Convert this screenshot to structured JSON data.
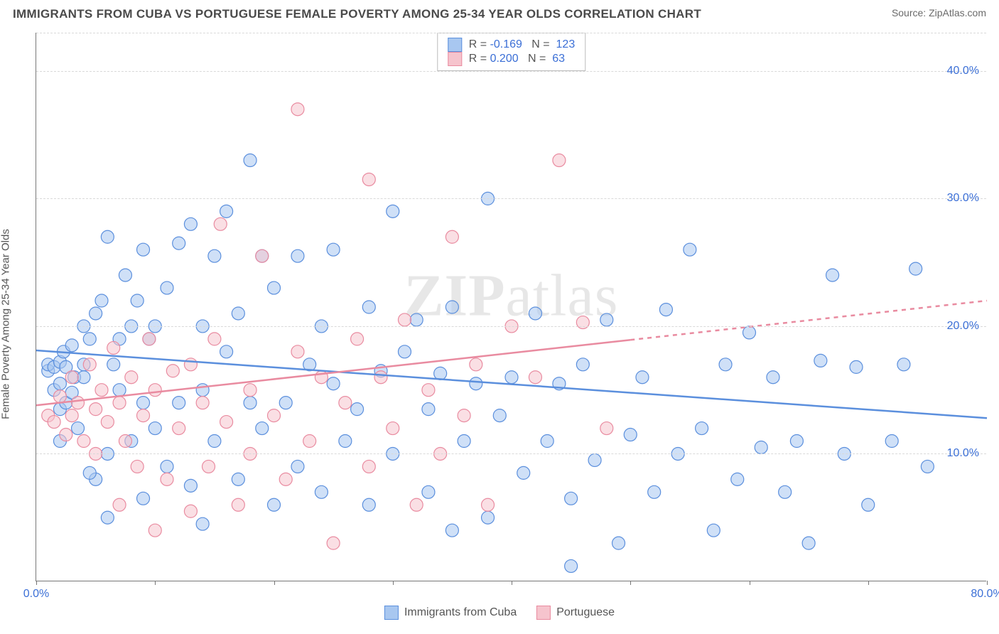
{
  "title": "IMMIGRANTS FROM CUBA VS PORTUGUESE FEMALE POVERTY AMONG 25-34 YEAR OLDS CORRELATION CHART",
  "source_label": "Source:",
  "source_name": "ZipAtlas.com",
  "ylabel": "Female Poverty Among 25-34 Year Olds",
  "watermark": {
    "a": "ZIP",
    "b": "atlas"
  },
  "chart": {
    "type": "scatter",
    "xlim": [
      0,
      80
    ],
    "ylim": [
      0,
      43
    ],
    "xtick_step": 10,
    "ytick_step": 10,
    "x_visible_labels": [
      0,
      80
    ],
    "y_visible_labels": [
      10,
      20,
      30,
      40
    ],
    "x_suffix": "%",
    "y_suffix": "%",
    "grid_color": "#d9d9d9",
    "axis_color": "#777777",
    "background_color": "#ffffff",
    "tick_label_color": "#3b6fd6",
    "marker_radius": 9,
    "marker_opacity": 0.55,
    "line_width": 2.5,
    "series": [
      {
        "id": "cuba",
        "label": "Immigrants from Cuba",
        "fill": "#a8c7f0",
        "stroke": "#5b8fdd",
        "R": "-0.169",
        "N": "123",
        "trend": {
          "x1": 0,
          "y1": 18.1,
          "x2": 80,
          "y2": 12.8,
          "dashed_from_x": null
        },
        "points": [
          [
            1,
            16.5
          ],
          [
            1,
            17
          ],
          [
            1.5,
            15
          ],
          [
            1.5,
            16.8
          ],
          [
            2,
            17.2
          ],
          [
            2,
            15.5
          ],
          [
            2,
            13.5
          ],
          [
            2.3,
            18
          ],
          [
            2.5,
            16.8
          ],
          [
            2.5,
            14
          ],
          [
            3,
            18.5
          ],
          [
            3,
            14.8
          ],
          [
            3.2,
            16
          ],
          [
            3.5,
            12
          ],
          [
            4,
            17
          ],
          [
            4,
            16
          ],
          [
            4,
            20
          ],
          [
            4.5,
            19
          ],
          [
            5,
            21
          ],
          [
            5,
            8
          ],
          [
            5.5,
            22
          ],
          [
            6,
            27
          ],
          [
            6,
            10
          ],
          [
            6.5,
            17
          ],
          [
            7,
            15
          ],
          [
            7,
            19
          ],
          [
            7.5,
            24
          ],
          [
            8,
            20
          ],
          [
            8,
            11
          ],
          [
            8.5,
            22
          ],
          [
            9,
            26
          ],
          [
            9,
            14
          ],
          [
            9.5,
            19
          ],
          [
            10,
            20
          ],
          [
            10,
            12
          ],
          [
            11,
            23
          ],
          [
            11,
            9
          ],
          [
            12,
            26.5
          ],
          [
            12,
            14
          ],
          [
            13,
            28
          ],
          [
            13,
            7.5
          ],
          [
            14,
            15
          ],
          [
            14,
            20
          ],
          [
            15,
            25.5
          ],
          [
            15,
            11
          ],
          [
            16,
            29
          ],
          [
            16,
            18
          ],
          [
            17,
            21
          ],
          [
            17,
            8
          ],
          [
            18,
            33
          ],
          [
            18,
            14
          ],
          [
            19,
            25.5
          ],
          [
            19,
            12
          ],
          [
            20,
            23
          ],
          [
            20,
            6
          ],
          [
            21,
            14
          ],
          [
            22,
            25.5
          ],
          [
            22,
            9
          ],
          [
            23,
            17
          ],
          [
            24,
            20
          ],
          [
            24,
            7
          ],
          [
            25,
            26
          ],
          [
            25,
            15.5
          ],
          [
            26,
            11
          ],
          [
            27,
            13.5
          ],
          [
            28,
            21.5
          ],
          [
            28,
            6
          ],
          [
            29,
            16.5
          ],
          [
            30,
            29
          ],
          [
            30,
            10
          ],
          [
            31,
            18
          ],
          [
            32,
            20.5
          ],
          [
            33,
            13.5
          ],
          [
            33,
            7
          ],
          [
            34,
            16.3
          ],
          [
            35,
            21.5
          ],
          [
            36,
            11
          ],
          [
            37,
            15.5
          ],
          [
            38,
            30
          ],
          [
            38,
            5
          ],
          [
            39,
            13
          ],
          [
            40,
            16
          ],
          [
            41,
            8.5
          ],
          [
            42,
            21
          ],
          [
            43,
            11
          ],
          [
            44,
            15.5
          ],
          [
            45,
            6.5
          ],
          [
            46,
            17
          ],
          [
            47,
            9.5
          ],
          [
            48,
            20.5
          ],
          [
            49,
            3
          ],
          [
            50,
            11.5
          ],
          [
            51,
            16
          ],
          [
            52,
            7
          ],
          [
            53,
            21.3
          ],
          [
            54,
            10
          ],
          [
            55,
            26
          ],
          [
            56,
            12
          ],
          [
            57,
            4
          ],
          [
            58,
            17
          ],
          [
            59,
            8
          ],
          [
            60,
            19.5
          ],
          [
            61,
            10.5
          ],
          [
            62,
            16
          ],
          [
            63,
            7
          ],
          [
            64,
            11
          ],
          [
            65,
            3
          ],
          [
            66,
            17.3
          ],
          [
            67,
            24
          ],
          [
            68,
            10
          ],
          [
            69,
            16.8
          ],
          [
            70,
            6
          ],
          [
            72,
            11
          ],
          [
            73,
            17
          ],
          [
            74,
            24.5
          ],
          [
            75,
            9
          ],
          [
            2,
            11
          ],
          [
            4.5,
            8.5
          ],
          [
            6,
            5
          ],
          [
            9,
            6.5
          ],
          [
            14,
            4.5
          ],
          [
            35,
            4
          ],
          [
            45,
            1.2
          ]
        ]
      },
      {
        "id": "portuguese",
        "label": "Portuguese",
        "fill": "#f6c4cd",
        "stroke": "#e98ba0",
        "R": "0.200",
        "N": "63",
        "trend": {
          "x1": 0,
          "y1": 13.8,
          "x2": 80,
          "y2": 22.0,
          "dashed_from_x": 50
        },
        "points": [
          [
            1,
            13
          ],
          [
            1.5,
            12.5
          ],
          [
            2,
            14.5
          ],
          [
            2.5,
            11.5
          ],
          [
            3,
            16
          ],
          [
            3,
            13
          ],
          [
            3.5,
            14
          ],
          [
            4,
            11
          ],
          [
            4.5,
            17
          ],
          [
            5,
            13.5
          ],
          [
            5,
            10
          ],
          [
            5.5,
            15
          ],
          [
            6,
            12.5
          ],
          [
            6.5,
            18.3
          ],
          [
            7,
            14
          ],
          [
            7,
            6
          ],
          [
            7.5,
            11
          ],
          [
            8,
            16
          ],
          [
            8.5,
            9
          ],
          [
            9,
            13
          ],
          [
            9.5,
            19
          ],
          [
            10,
            15
          ],
          [
            10,
            4
          ],
          [
            11,
            8
          ],
          [
            11.5,
            16.5
          ],
          [
            12,
            12
          ],
          [
            13,
            17
          ],
          [
            13,
            5.5
          ],
          [
            14,
            14
          ],
          [
            14.5,
            9
          ],
          [
            15,
            19
          ],
          [
            15.5,
            28
          ],
          [
            16,
            12.5
          ],
          [
            17,
            6
          ],
          [
            18,
            15
          ],
          [
            18,
            10
          ],
          [
            19,
            25.5
          ],
          [
            20,
            13
          ],
          [
            21,
            8
          ],
          [
            22,
            18
          ],
          [
            22,
            37
          ],
          [
            23,
            11
          ],
          [
            24,
            16
          ],
          [
            25,
            3
          ],
          [
            26,
            14
          ],
          [
            27,
            19
          ],
          [
            28,
            9
          ],
          [
            28,
            31.5
          ],
          [
            29,
            16
          ],
          [
            30,
            12
          ],
          [
            31,
            20.5
          ],
          [
            32,
            6
          ],
          [
            33,
            15
          ],
          [
            34,
            10
          ],
          [
            35,
            27
          ],
          [
            36,
            13
          ],
          [
            37,
            17
          ],
          [
            38,
            6
          ],
          [
            40,
            20
          ],
          [
            42,
            16
          ],
          [
            44,
            33
          ],
          [
            46,
            20.3
          ],
          [
            48,
            12
          ]
        ]
      }
    ],
    "stats_legend": {
      "R_label": "R =",
      "N_label": "N ="
    }
  }
}
